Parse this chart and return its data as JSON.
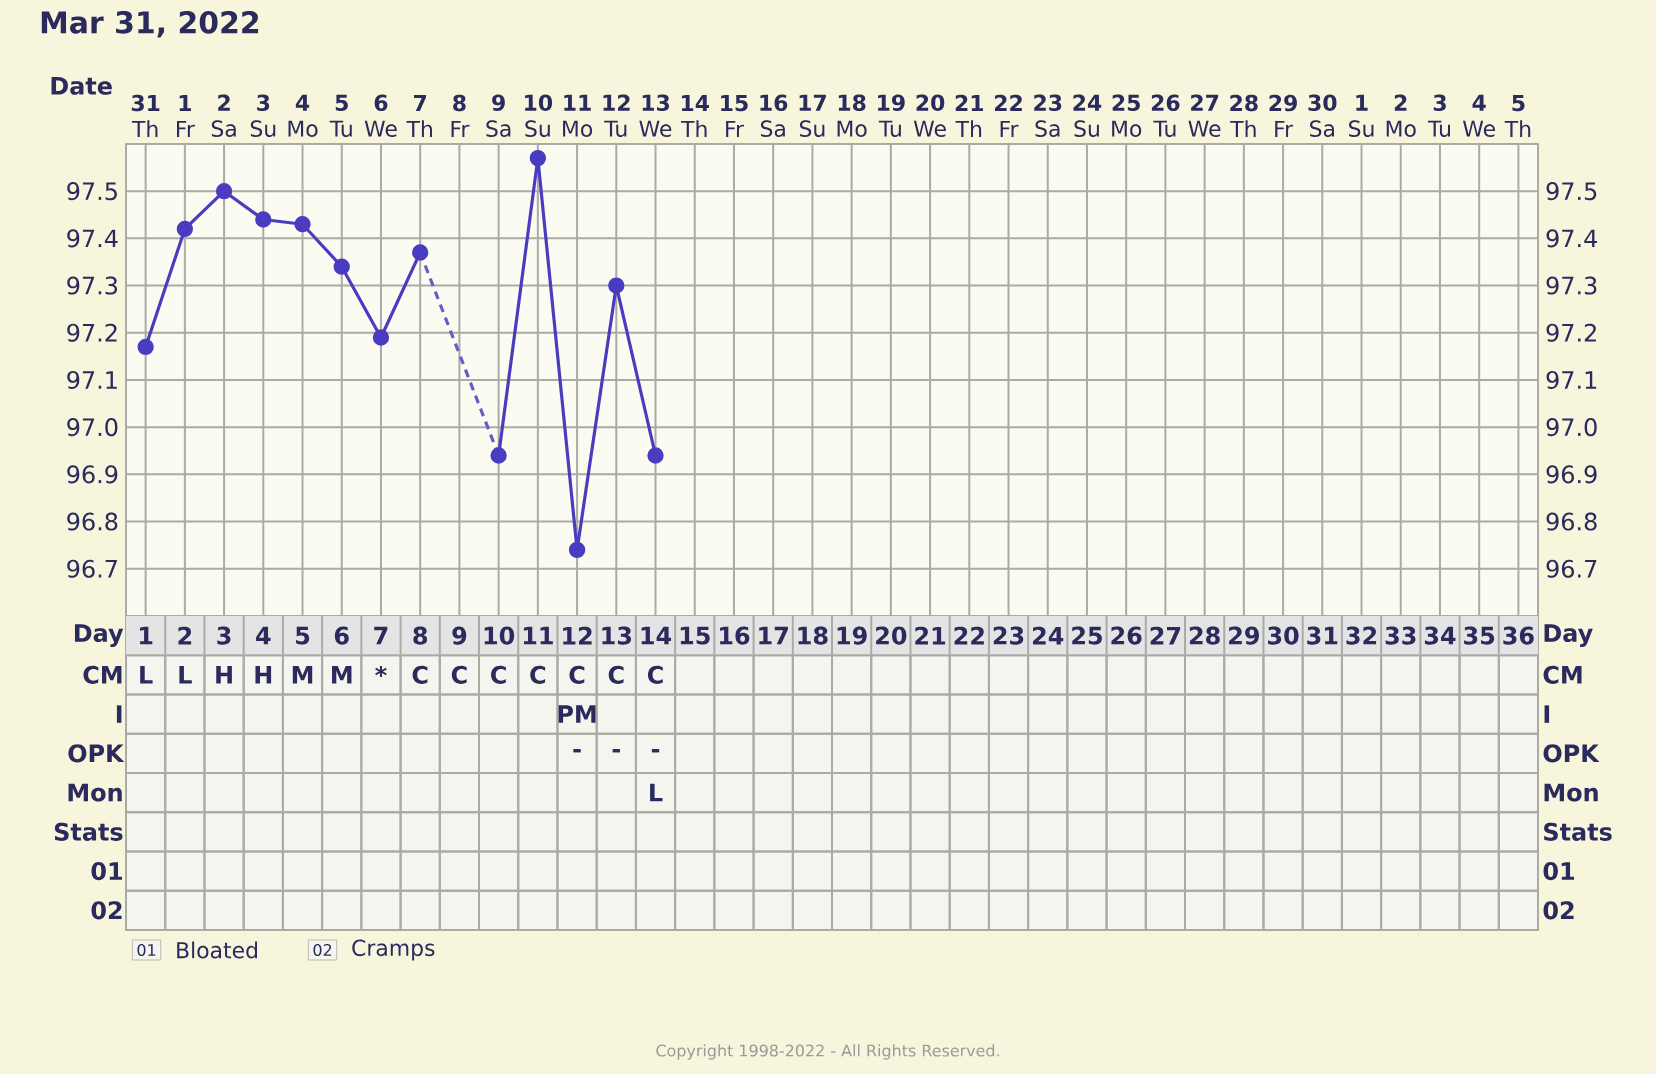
{
  "chart_data": [
    {
      "type": "line",
      "title": "Mar 31, 2022",
      "xlabel": "Date",
      "categories": [
        "**31** Th",
        "**1** Fr",
        "**2** Sa",
        "**3** Su",
        "**4** Mo",
        "**5** Tu",
        "**6** We",
        "**7** Th",
        "**8** Fr",
        "**9** Sa",
        "**10** Su",
        "**11** Mo",
        "**12** Tu",
        "**13** We",
        "**14** Th",
        "**15** Fr",
        "**16** Sa",
        "**17** Su",
        "**18** Mo",
        "**19** Tu",
        "**20** We",
        "**21** Th",
        "**22** Fr",
        "**23** Sa",
        "**24** Su",
        "**25** Mo",
        "**26** Tu",
        "**27** We",
        "**28** Th",
        "**29** Fr",
        "**30** Sa",
        "**1** Su",
        "**2** Mo",
        "**3** Tu",
        "**4** We",
        "**5** Th"
      ],
      "series": [
        {
          "color": "#4a3cc0",
          "marker": "circle",
          "line_style": "solid",
          "values": [
            97.17,
            97.42,
            97.5,
            97.44,
            97.43,
            97.34,
            97.19,
            97.37,
            null,
            96.94,
            97.57,
            96.74,
            97.3,
            96.94,
            null,
            null,
            null,
            null,
            null,
            null,
            null,
            null,
            null,
            null,
            null,
            null,
            null,
            null,
            null,
            null,
            null,
            null,
            null,
            null,
            null,
            null
          ]
        },
        {
          "color": "#6a5cc8",
          "marker": "none",
          "line_style": "dashed",
          "values": [
            null,
            null,
            null,
            null,
            null,
            null,
            null,
            97.37,
            null,
            96.94,
            null,
            null,
            null,
            null,
            null,
            null,
            null,
            null,
            null,
            null,
            null,
            null,
            null,
            null,
            null,
            null,
            null,
            null,
            null,
            null,
            null,
            null,
            null,
            null,
            null,
            null
          ]
        }
      ],
      "ylim": [
        96.6,
        97.6
      ],
      "yticks": [
        96.7,
        96.8,
        96.9,
        {
          "value": 97.0,
          "label": "97.0"
        },
        97.1,
        97.2,
        97.3,
        97.4,
        97.5
      ],
      "y2lim": [
        96.6,
        97.6
      ],
      "y2ticks": [
        96.7,
        96.8,
        96.9,
        {
          "value": 97.0,
          "label": "97.0"
        },
        97.1,
        97.2,
        97.3,
        97.4,
        97.5
      ],
      "grid": true
    },
    {
      "type": "heatmap",
      "categories": [
        null,
        null,
        null,
        null,
        null,
        null,
        null,
        null,
        null,
        null,
        null,
        null,
        null,
        null,
        null,
        null,
        null,
        null,
        null,
        null,
        null,
        null,
        null,
        null,
        null,
        null,
        null,
        null,
        null,
        null,
        null,
        null,
        null,
        null,
        null,
        null
      ],
      "y_categories": [
        "Day",
        "CM",
        "I",
        "OPK",
        "Mon",
        "Stats",
        "01",
        "02"
      ],
      "y2_categories": [
        "Day",
        "CM",
        "I",
        "OPK",
        "Mon",
        "Stats",
        "01",
        "02"
      ],
      "cells": [
        [
          null,
          null,
          null,
          null,
          null,
          null,
          null,
          null,
          null,
          null,
          null,
          null,
          null,
          null,
          null,
          null,
          null,
          null,
          null,
          null,
          null,
          null,
          null,
          null,
          null,
          null,
          null,
          null,
          null,
          null,
          null,
          null,
          null,
          null,
          null,
          null
        ],
        [
          null,
          null,
          null,
          null,
          null,
          null,
          null,
          null,
          null,
          null,
          null,
          null,
          null,
          null,
          null,
          null,
          null,
          null,
          null,
          null,
          null,
          null,
          null,
          null,
          null,
          null,
          null,
          null,
          null,
          null,
          null,
          null,
          null,
          null,
          null,
          null
        ],
        [
          null,
          null,
          null,
          null,
          null,
          null,
          null,
          null,
          null,
          null,
          null,
          null,
          null,
          null,
          null,
          null,
          null,
          null,
          null,
          null,
          null,
          null,
          null,
          null,
          null,
          null,
          null,
          null,
          null,
          null,
          null,
          null,
          null,
          null,
          null,
          null
        ],
        [
          null,
          null,
          null,
          null,
          null,
          null,
          null,
          null,
          null,
          null,
          null,
          null,
          null,
          null,
          null,
          null,
          null,
          null,
          null,
          null,
          null,
          null,
          null,
          null,
          null,
          null,
          null,
          null,
          null,
          null,
          null,
          null,
          null,
          null,
          null,
          null
        ],
        [
          null,
          null,
          null,
          null,
          null,
          null,
          null,
          null,
          null,
          null,
          null,
          null,
          null,
          null,
          null,
          null,
          null,
          null,
          null,
          null,
          null,
          null,
          null,
          null,
          null,
          null,
          null,
          null,
          null,
          null,
          null,
          null,
          null,
          null,
          null,
          null
        ],
        [
          null,
          null,
          null,
          null,
          null,
          null,
          null,
          null,
          null,
          null,
          null,
          null,
          null,
          null,
          null,
          null,
          null,
          null,
          null,
          null,
          null,
          null,
          null,
          null,
          null,
          null,
          null,
          null,
          null,
          null,
          null,
          null,
          null,
          null,
          null,
          null
        ],
        [
          null,
          null,
          null,
          null,
          null,
          null,
          null,
          null,
          null,
          null,
          null,
          null,
          null,
          null,
          null,
          null,
          null,
          null,
          null,
          null,
          null,
          null,
          null,
          null,
          null,
          null,
          null,
          null,
          null,
          null,
          null,
          null,
          null,
          null,
          null,
          null
        ],
        [
          null,
          null,
          null,
          null,
          null,
          null,
          null,
          null,
          null,
          null,
          null,
          null,
          null,
          null,
          null,
          null,
          null,
          null,
          null,
          null,
          null,
          null,
          null,
          null,
          null,
          null,
          null,
          null,
          null,
          null,
          null,
          null,
          null,
          null,
          null,
          null
        ]
      ],
      "cell_labels": [
        [
          "1",
          "2",
          "3",
          "4",
          "5",
          "6",
          "7",
          "8",
          "9",
          "10",
          "11",
          "12",
          "13",
          "14",
          "15",
          "16",
          "17",
          "18",
          "19",
          "20",
          "21",
          "22",
          "23",
          "24",
          "25",
          "26",
          "27",
          "28",
          "29",
          "30",
          "31",
          "32",
          "33",
          "34",
          "35",
          "36"
        ],
        [
          "L",
          "L",
          "H",
          "H",
          "M",
          "M",
          "*",
          "C",
          "C",
          "C",
          "C",
          "C",
          "C",
          "C",
          null,
          null,
          null,
          null,
          null,
          null,
          null,
          null,
          null,
          null,
          null,
          null,
          null,
          null,
          null,
          null,
          null,
          null,
          null,
          null,
          null,
          null
        ],
        [
          null,
          null,
          null,
          null,
          null,
          null,
          null,
          null,
          null,
          null,
          null,
          "PM",
          null,
          null,
          null,
          null,
          null,
          null,
          null,
          null,
          null,
          null,
          null,
          null,
          null,
          null,
          null,
          null,
          null,
          null,
          null,
          null,
          null,
          null,
          null,
          null
        ],
        [
          null,
          null,
          null,
          null,
          null,
          null,
          null,
          null,
          null,
          null,
          null,
          "-",
          "-",
          "-",
          null,
          null,
          null,
          null,
          null,
          null,
          null,
          null,
          null,
          null,
          null,
          null,
          null,
          null,
          null,
          null,
          null,
          null,
          null,
          null,
          null,
          null
        ],
        [
          null,
          null,
          null,
          null,
          null,
          null,
          null,
          null,
          null,
          null,
          null,
          null,
          null,
          "L",
          null,
          null,
          null,
          null,
          null,
          null,
          null,
          null,
          null,
          null,
          null,
          null,
          null,
          null,
          null,
          null,
          null,
          null,
          null,
          null,
          null,
          null
        ],
        [
          null,
          null,
          null,
          null,
          null,
          null,
          null,
          null,
          null,
          null,
          null,
          null,
          null,
          null,
          null,
          null,
          null,
          null,
          null,
          null,
          null,
          null,
          null,
          null,
          null,
          null,
          null,
          null,
          null,
          null,
          null,
          null,
          null,
          null,
          null,
          null
        ],
        [
          null,
          null,
          null,
          null,
          null,
          null,
          null,
          null,
          null,
          null,
          null,
          null,
          null,
          null,
          null,
          null,
          null,
          null,
          null,
          null,
          null,
          null,
          null,
          null,
          null,
          null,
          null,
          null,
          null,
          null,
          null,
          null,
          null,
          null,
          null,
          null
        ],
        [
          null,
          null,
          null,
          null,
          null,
          null,
          null,
          null,
          null,
          null,
          null,
          null,
          null,
          null,
          null,
          null,
          null,
          null,
          null,
          null,
          null,
          null,
          null,
          null,
          null,
          null,
          null,
          null,
          null,
          null,
          null,
          null,
          null,
          null,
          null,
          null
        ]
      ],
      "annotations": [
        "Bloated",
        "Cramps",
        "Copyright 1998-2022 - All Rights Reserved."
      ]
    }
  ]
}
